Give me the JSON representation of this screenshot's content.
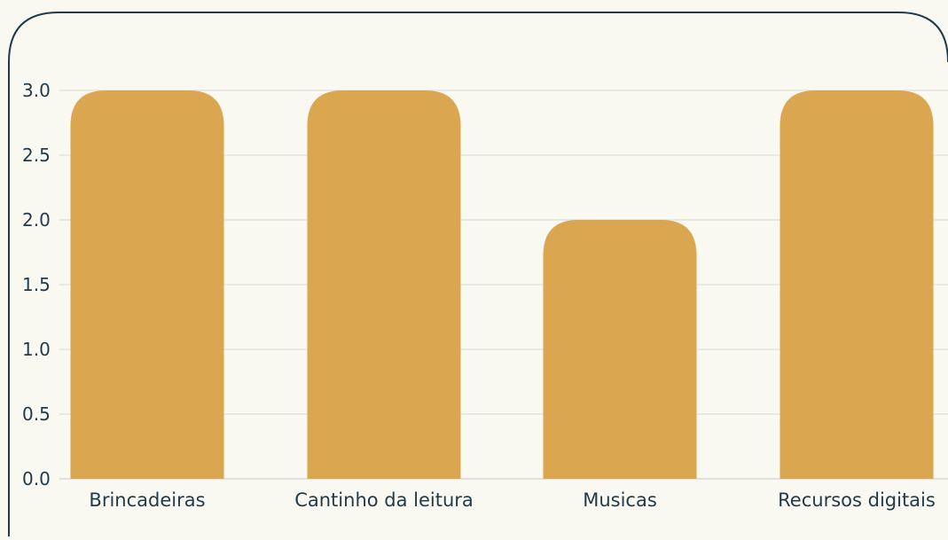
{
  "chart_data": {
    "type": "bar",
    "title": "",
    "xlabel": "",
    "ylabel": "",
    "categories": [
      "Brincadeiras",
      "Cantinho da leitura",
      "Musicas",
      "Recursos digitais"
    ],
    "values": [
      3,
      3,
      2,
      3
    ],
    "ylim": [
      0,
      3
    ],
    "yticks": [
      "0.0",
      "0.5",
      "1.0",
      "1.5",
      "2.0",
      "2.5",
      "3.0"
    ],
    "grid": true,
    "legend": "none"
  },
  "colors": {
    "bar": "#dba650",
    "background": "#f9f8f1",
    "frame_border": "#1f3a4a",
    "gridline": "#d9d9d4",
    "text": "#1f3a4a"
  }
}
